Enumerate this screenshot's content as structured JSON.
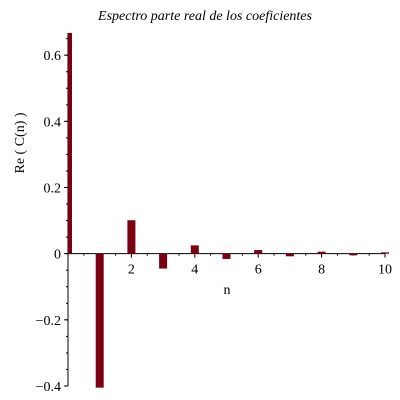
{
  "chart_data": {
    "type": "bar",
    "title": "Espectro parte real de los coeficientes",
    "xlabel": "n",
    "ylabel": "Re ( C(n) )",
    "x": [
      0,
      1,
      2,
      3,
      4,
      5,
      6,
      7,
      8,
      9,
      10
    ],
    "values": [
      0.667,
      -0.405,
      0.101,
      -0.045,
      0.025,
      -0.016,
      0.011,
      -0.008,
      0.006,
      -0.005,
      0.004
    ],
    "xlim": [
      0,
      10
    ],
    "ylim": [
      -0.4,
      0.667
    ],
    "xticks": [
      2,
      4,
      6,
      8,
      10
    ],
    "xtick_labels": [
      "2",
      "4",
      "6",
      "8",
      "10"
    ],
    "yticks": [
      -0.4,
      -0.2,
      0,
      0.2,
      0.4,
      0.6
    ],
    "ytick_labels": [
      "−0.4",
      "−0.2",
      "0",
      "0.2",
      "0.4",
      "0.6"
    ],
    "bar_color": "#7b0011",
    "grid": false,
    "legend": "none"
  }
}
